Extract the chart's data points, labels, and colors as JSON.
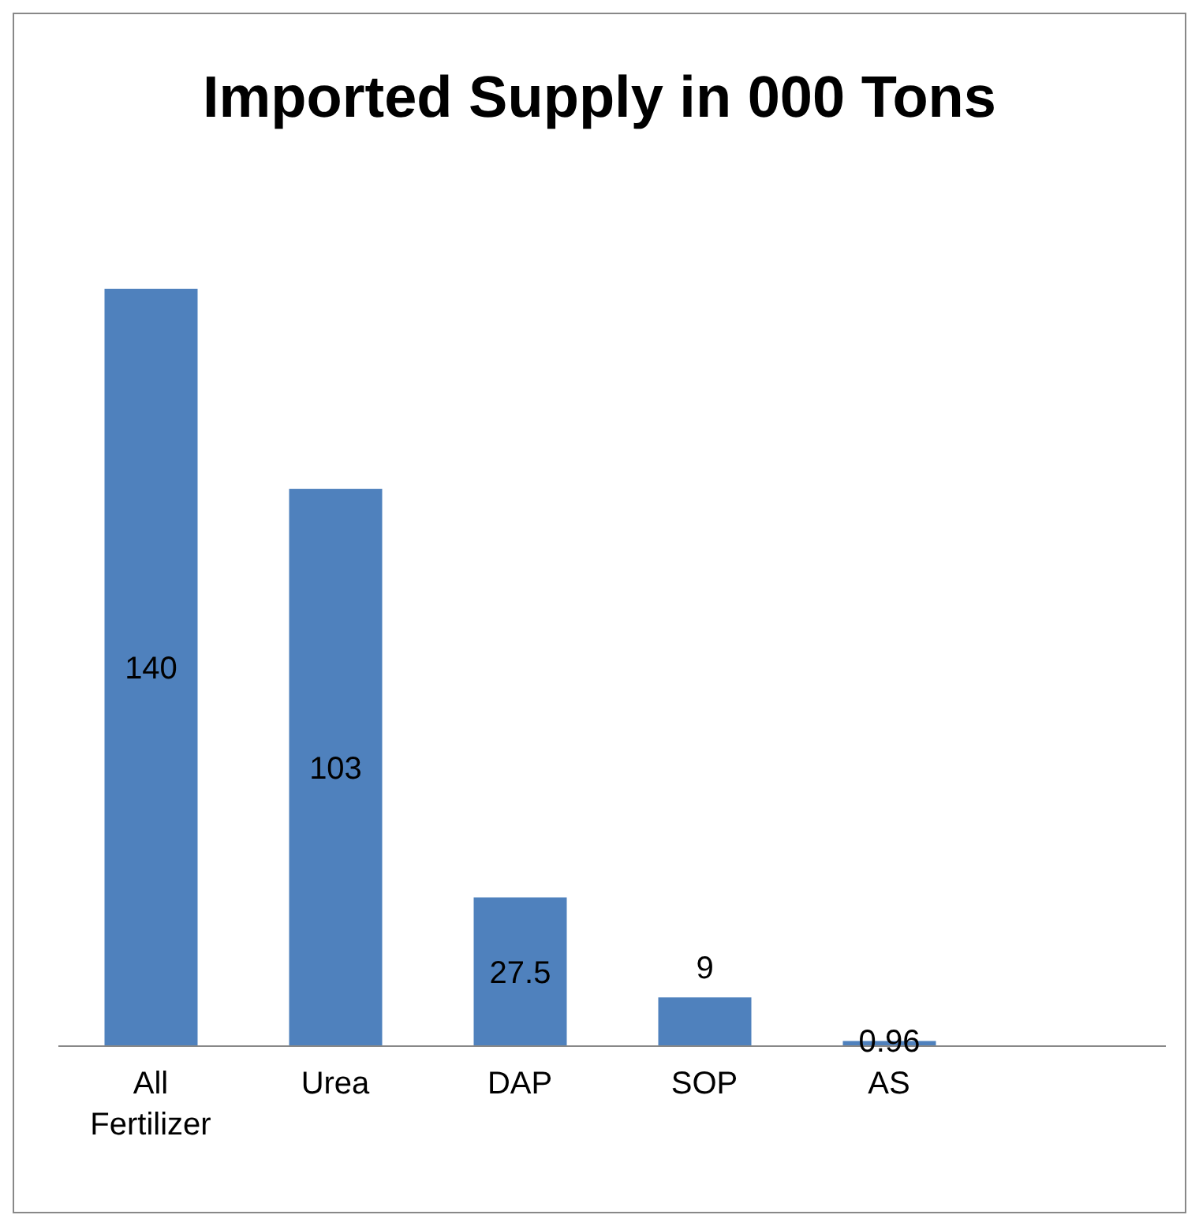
{
  "chart_data": {
    "type": "bar",
    "title": "Imported Supply in 000 Tons",
    "categories": [
      "All Fertilizer",
      "Urea",
      "DAP",
      "SOP",
      "AS",
      null
    ],
    "values": [
      140,
      103,
      27.5,
      9,
      0.96,
      null
    ],
    "color": "#4f81bd",
    "data_labels": true,
    "grid": false,
    "legend": false
  }
}
